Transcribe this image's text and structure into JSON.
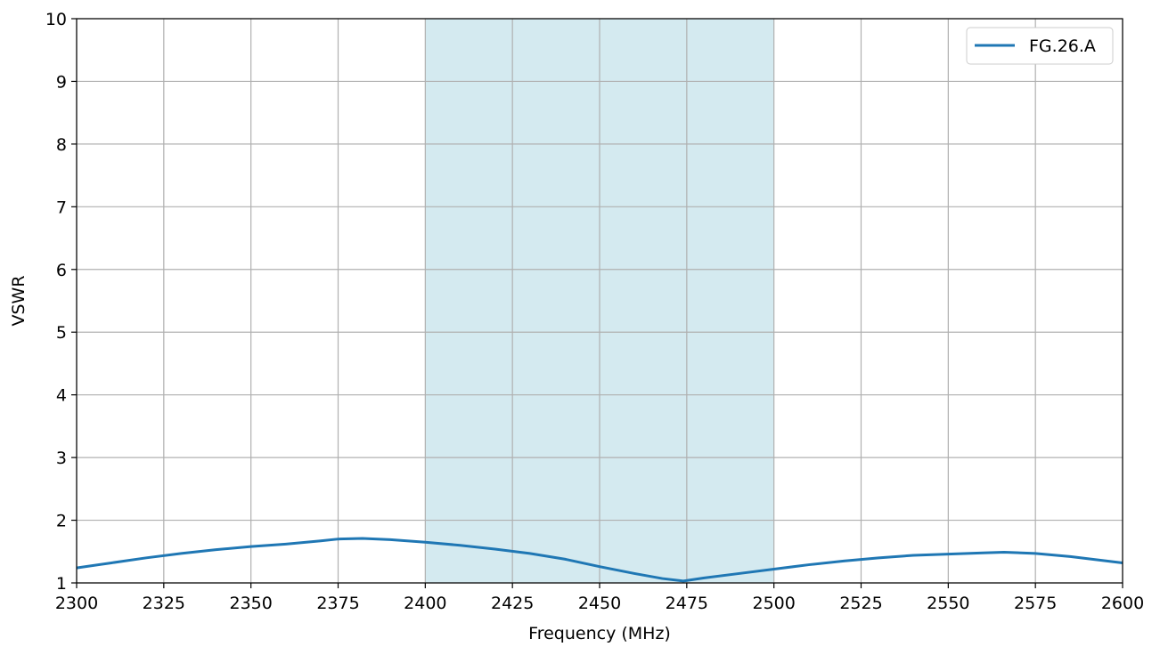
{
  "chart_data": {
    "type": "line",
    "title": "",
    "xlabel": "Frequency (MHz)",
    "ylabel": "VSWR",
    "xlim": [
      2300,
      2600
    ],
    "ylim": [
      1,
      10
    ],
    "x_ticks": [
      "2300",
      "2325",
      "2350",
      "2375",
      "2400",
      "2425",
      "2450",
      "2475",
      "2500",
      "2525",
      "2550",
      "2575",
      "2600"
    ],
    "y_ticks": [
      "1",
      "2",
      "3",
      "4",
      "5",
      "6",
      "7",
      "8",
      "9",
      "10"
    ],
    "grid": true,
    "legend_position": "top-right",
    "shaded_band": {
      "x_start": 2400,
      "x_end": 2500,
      "color": "#d4eaf0"
    },
    "series": [
      {
        "name": "FG.26.A",
        "color": "#1f77b4",
        "x": [
          2300,
          2310,
          2320,
          2330,
          2340,
          2350,
          2360,
          2370,
          2375,
          2382,
          2390,
          2400,
          2410,
          2420,
          2430,
          2440,
          2450,
          2460,
          2468,
          2474,
          2480,
          2490,
          2500,
          2510,
          2520,
          2530,
          2540,
          2550,
          2560,
          2566,
          2575,
          2585,
          2600
        ],
        "y": [
          1.24,
          1.32,
          1.4,
          1.47,
          1.53,
          1.58,
          1.62,
          1.67,
          1.7,
          1.71,
          1.69,
          1.65,
          1.6,
          1.54,
          1.47,
          1.38,
          1.26,
          1.15,
          1.07,
          1.03,
          1.08,
          1.15,
          1.22,
          1.29,
          1.35,
          1.4,
          1.44,
          1.46,
          1.48,
          1.49,
          1.47,
          1.42,
          1.32
        ]
      }
    ]
  }
}
